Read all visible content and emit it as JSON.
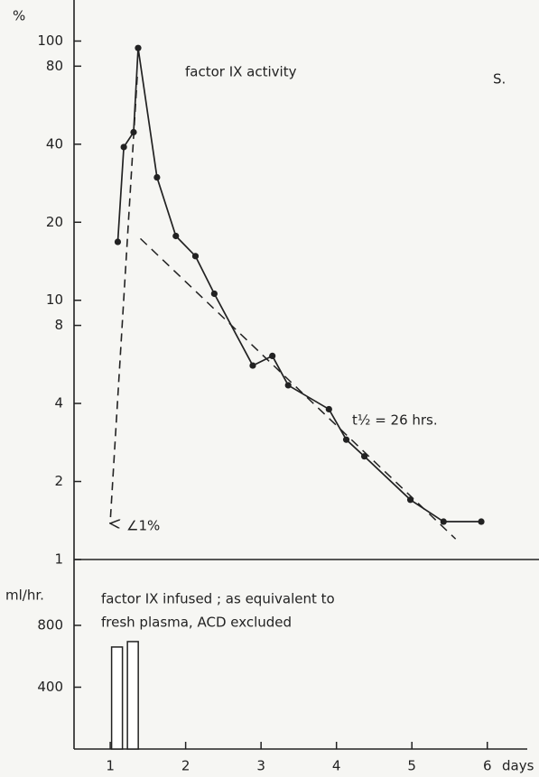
{
  "chart_data": [
    {
      "type": "line",
      "title": "factor IX activity",
      "ylabel": "%",
      "log_scale": true,
      "annotations": [
        "S.",
        "t½ = 26 hrs.",
        "∠1%"
      ],
      "x": [
        1.1,
        1.18,
        1.31,
        1.37,
        1.62,
        1.87,
        2.13,
        2.38,
        2.89,
        3.15,
        3.36,
        3.9,
        4.13,
        4.37,
        4.98,
        5.42,
        5.92
      ],
      "values": [
        16.8,
        39,
        44.5,
        94,
        29.8,
        17.7,
        14.8,
        10.6,
        5.6,
        6.1,
        4.7,
        3.8,
        2.9,
        2.5,
        1.7,
        1.4,
        1.4
      ],
      "trend": {
        "x": [
          1.4,
          5.58
        ],
        "values": [
          17.3,
          1.2
        ]
      },
      "color": "#222222",
      "xlim": [
        0.52,
        6.53
      ],
      "ylim": [
        1,
        144
      ],
      "yticks": [
        1,
        2,
        4,
        8,
        10,
        20,
        40,
        80,
        100
      ]
    },
    {
      "type": "bar",
      "ylabel": "ml/hr.",
      "xlabel": "days",
      "annotations": [
        "factor IX  infused ; as equivalent to",
        "fresh plasma,   ACD  excluded"
      ],
      "x": [
        1.09,
        1.3
      ],
      "values": [
        660,
        695
      ],
      "color": "#ffffff",
      "xlim": [
        0.52,
        6.53
      ],
      "ylim": [
        0,
        1226
      ],
      "xticks": [
        1,
        2,
        3,
        4,
        5,
        6
      ],
      "yticks": [
        400,
        800
      ]
    }
  ]
}
